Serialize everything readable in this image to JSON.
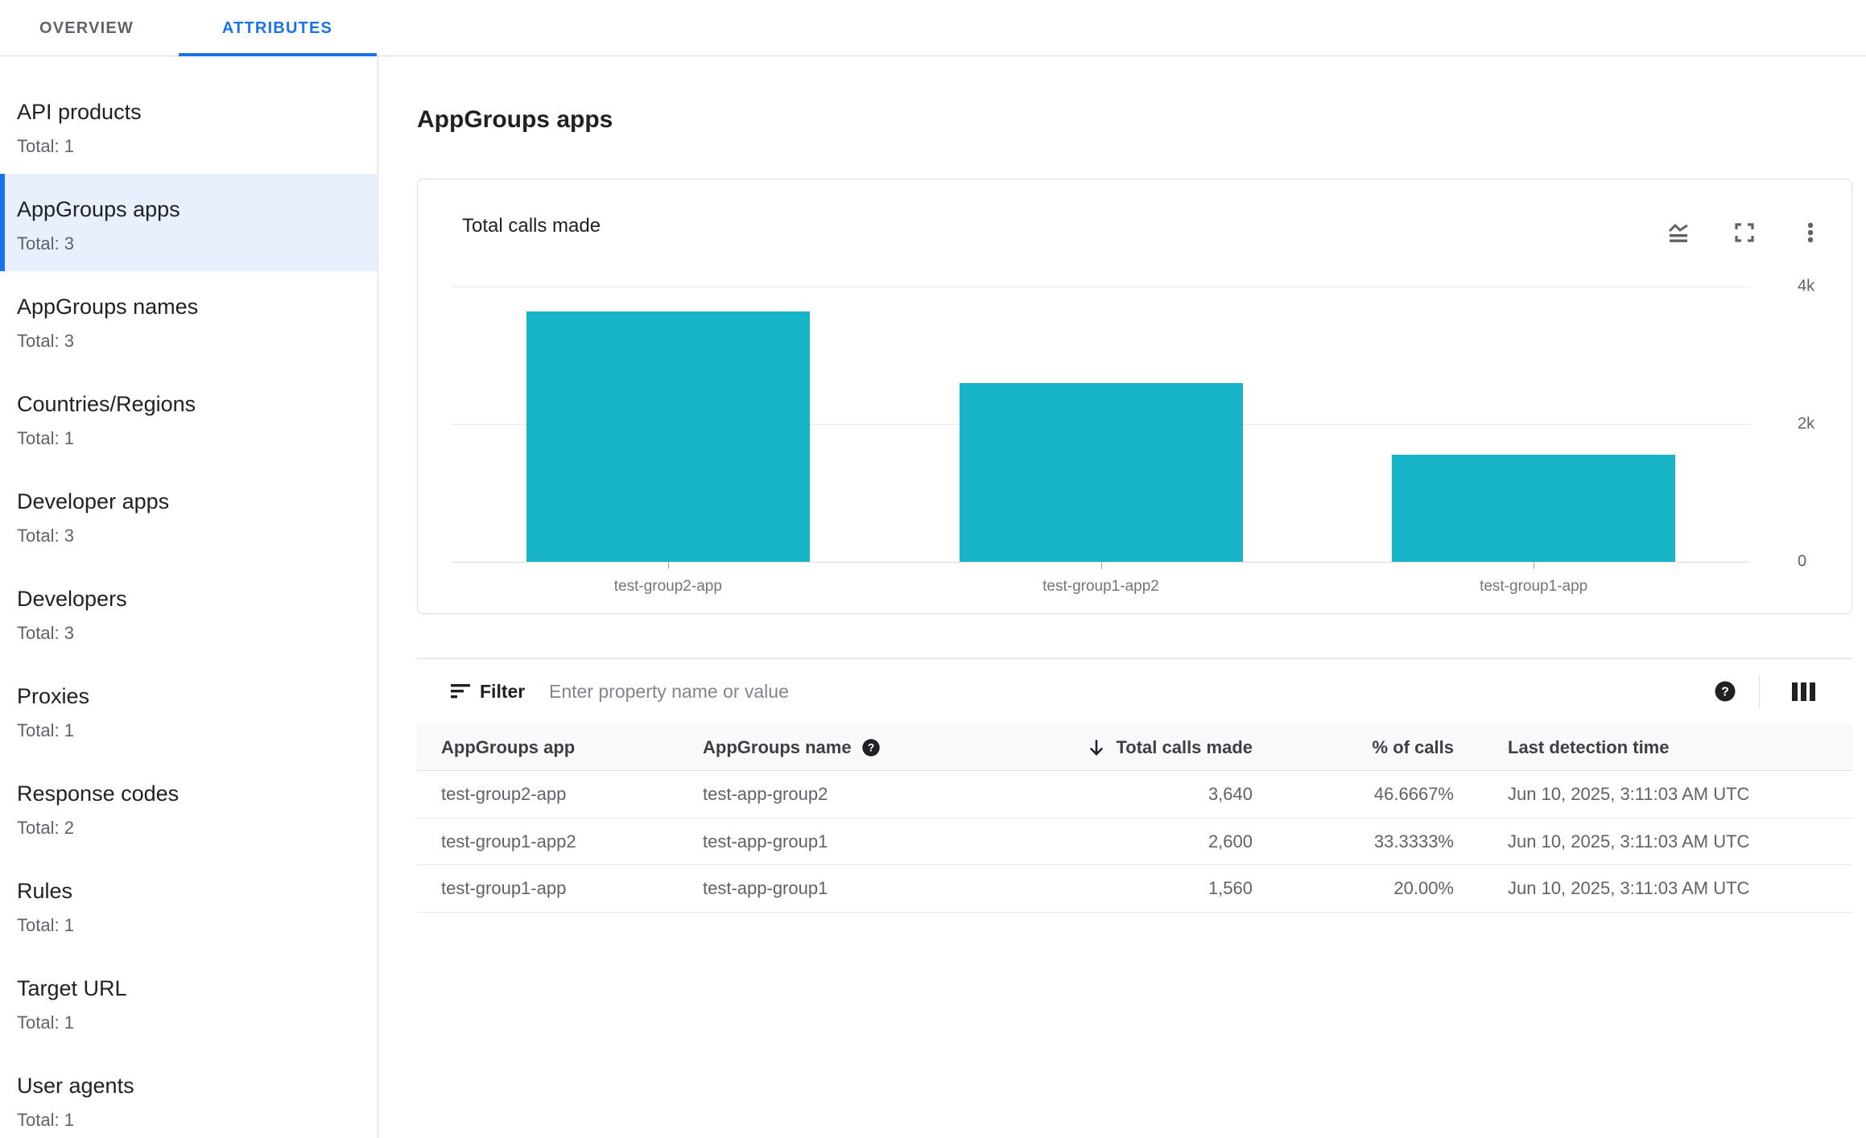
{
  "tabs": {
    "overview": "OVERVIEW",
    "attributes": "ATTRIBUTES"
  },
  "sidebar": {
    "items": [
      {
        "label": "API products",
        "total": "Total: 1",
        "selected": false
      },
      {
        "label": "AppGroups apps",
        "total": "Total: 3",
        "selected": true
      },
      {
        "label": "AppGroups names",
        "total": "Total: 3",
        "selected": false
      },
      {
        "label": "Countries/Regions",
        "total": "Total: 1",
        "selected": false
      },
      {
        "label": "Developer apps",
        "total": "Total: 3",
        "selected": false
      },
      {
        "label": "Developers",
        "total": "Total: 3",
        "selected": false
      },
      {
        "label": "Proxies",
        "total": "Total: 1",
        "selected": false
      },
      {
        "label": "Response codes",
        "total": "Total: 2",
        "selected": false
      },
      {
        "label": "Rules",
        "total": "Total: 1",
        "selected": false
      },
      {
        "label": "Target URL",
        "total": "Total: 1",
        "selected": false
      },
      {
        "label": "User agents",
        "total": "Total: 1",
        "selected": false
      }
    ]
  },
  "page": {
    "title": "AppGroups apps"
  },
  "chart_card": {
    "title": "Total calls made"
  },
  "chart_data": {
    "type": "bar",
    "title": "Total calls made",
    "categories": [
      "test-group2-app",
      "test-group1-app2",
      "test-group1-app"
    ],
    "values": [
      3640,
      2600,
      1560
    ],
    "ylim": [
      0,
      4000
    ],
    "yticks": [
      {
        "value": 4000,
        "label": "4k"
      },
      {
        "value": 2000,
        "label": "2k"
      },
      {
        "value": 0,
        "label": "0"
      }
    ],
    "bar_color": "#17B3C7",
    "grid": true,
    "ytick_side": "right",
    "xlabel": "",
    "ylabel": ""
  },
  "filter": {
    "label": "Filter",
    "placeholder": "Enter property name or value"
  },
  "table": {
    "columns": [
      {
        "label": "AppGroups app"
      },
      {
        "label": "AppGroups name",
        "help": true
      },
      {
        "label": "Total calls made",
        "sorted": "desc"
      },
      {
        "label": "% of calls"
      },
      {
        "label": "Last detection time"
      }
    ],
    "rows": [
      {
        "app": "test-group2-app",
        "name": "test-app-group2",
        "calls": "3,640",
        "pct": "46.6667%",
        "time": "Jun 10, 2025, 3:11:03 AM UTC"
      },
      {
        "app": "test-group1-app2",
        "name": "test-app-group1",
        "calls": "2,600",
        "pct": "33.3333%",
        "time": "Jun 10, 2025, 3:11:03 AM UTC"
      },
      {
        "app": "test-group1-app",
        "name": "test-app-group1",
        "calls": "1,560",
        "pct": "20.00%",
        "time": "Jun 10, 2025, 3:11:03 AM UTC"
      }
    ]
  },
  "colors": {
    "accent_blue": "#1A73E8",
    "selected_bg": "#E8F0FE",
    "bar_teal": "#17B3C7",
    "text_primary": "#202124",
    "text_secondary": "#5F6368",
    "border": "#DADCE0",
    "header_bg": "#F8F9FA"
  }
}
